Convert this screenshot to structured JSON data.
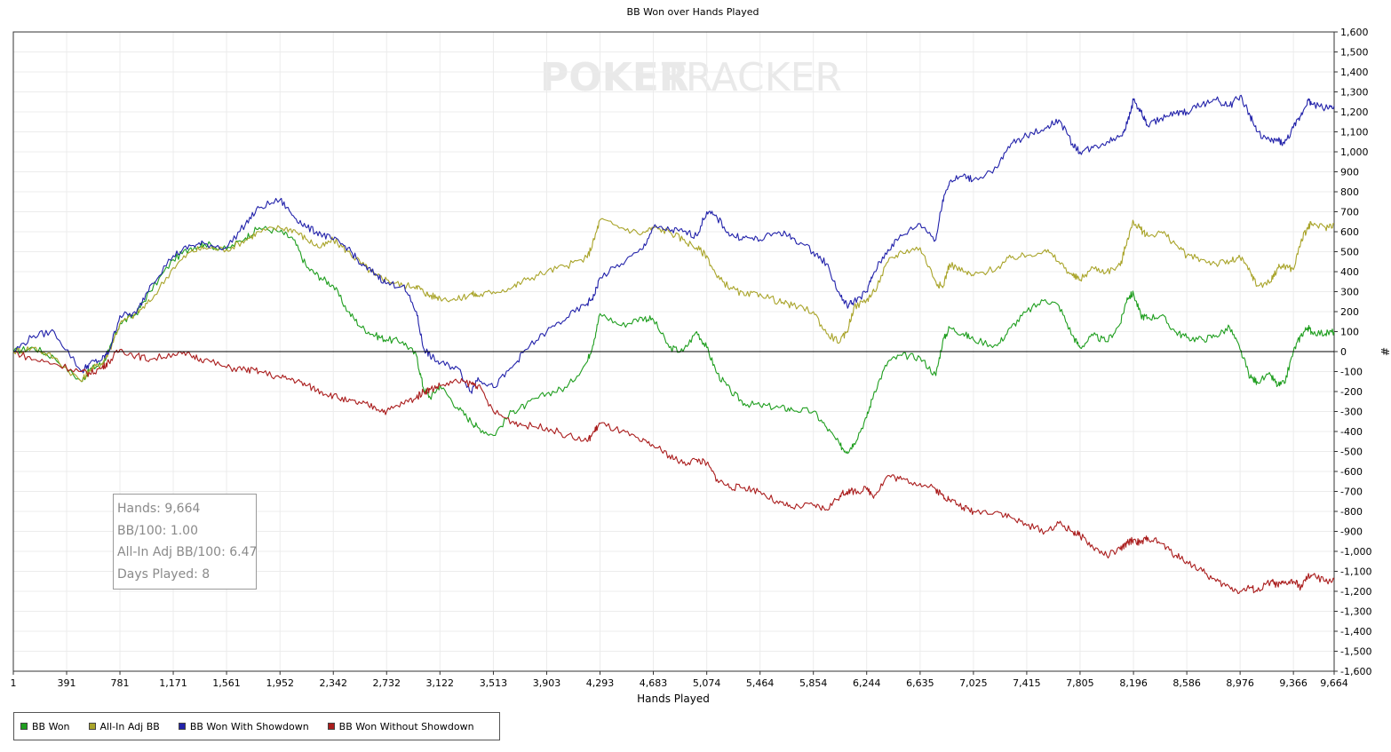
{
  "chart_data": {
    "type": "line",
    "title": "BB Won over Hands Played",
    "xlabel": "Hands Played",
    "ylabel": "#",
    "watermark": {
      "part1": "POKER",
      "part2": "TRACKER"
    },
    "x_range": [
      1,
      9664
    ],
    "ylim": [
      -1600,
      1600
    ],
    "y_ticks": [
      1600,
      1500,
      1400,
      1300,
      1200,
      1100,
      1000,
      900,
      800,
      700,
      600,
      500,
      400,
      300,
      200,
      100,
      0,
      -100,
      -200,
      -300,
      -400,
      -500,
      -600,
      -700,
      -800,
      -900,
      -1000,
      -1100,
      -1200,
      -1300,
      -1400,
      -1500,
      -1600
    ],
    "y_tick_labels": [
      "1,600",
      "1,500",
      "1,400",
      "1,300",
      "1,200",
      "1,100",
      "1,000",
      "900",
      "800",
      "700",
      "600",
      "500",
      "400",
      "300",
      "200",
      "100",
      "0",
      "-100",
      "-200",
      "-300",
      "-400",
      "-500",
      "-600",
      "-700",
      "-800",
      "-900",
      "-1,000",
      "-1,100",
      "-1,200",
      "-1,300",
      "-1,400",
      "-1,500",
      "-1,600"
    ],
    "x_ticks": [
      1,
      391,
      781,
      1171,
      1561,
      1952,
      2342,
      2732,
      3122,
      3513,
      3903,
      4293,
      4683,
      5074,
      5464,
      5854,
      6244,
      6635,
      7025,
      7415,
      7805,
      8196,
      8586,
      8976,
      9366,
      9664
    ],
    "x_tick_labels": [
      "1",
      "391",
      "781",
      "1,171",
      "1,561",
      "1,952",
      "2,342",
      "2,732",
      "3,122",
      "3,513",
      "3,903",
      "4,293",
      "4,683",
      "5,074",
      "5,464",
      "5,854",
      "6,244",
      "6,635",
      "7,025",
      "7,415",
      "7,805",
      "8,196",
      "8,586",
      "8,976",
      "9,366",
      "9,664"
    ],
    "grid": true,
    "legend_position": "bottom-left",
    "series": [
      {
        "name": "BB Won",
        "color": "#1f9e1f",
        "x": [
          1,
          150,
          300,
          500,
          560,
          650,
          700,
          781,
          900,
          1000,
          1171,
          1300,
          1400,
          1561,
          1700,
          1800,
          1952,
          2050,
          2150,
          2250,
          2342,
          2450,
          2550,
          2650,
          2732,
          2850,
          2950,
          3000,
          3050,
          3122,
          3250,
          3350,
          3400,
          3513,
          3650,
          3750,
          3903,
          4050,
          4200,
          4250,
          4293,
          4450,
          4600,
          4683,
          4800,
          4900,
          5000,
          5074,
          5150,
          5250,
          5350,
          5464,
          5600,
          5700,
          5854,
          5950,
          6050,
          6100,
          6150,
          6244,
          6300,
          6400,
          6500,
          6635,
          6750,
          6800,
          6850,
          6950,
          7025,
          7200,
          7300,
          7415,
          7550,
          7650,
          7750,
          7805,
          7900,
          8000,
          8100,
          8150,
          8196,
          8250,
          8300,
          8400,
          8500,
          8586,
          8700,
          8800,
          8900,
          8976,
          9050,
          9100,
          9200,
          9250,
          9300,
          9366,
          9420,
          9470,
          9500,
          9600,
          9664
        ],
        "y": [
          0,
          20,
          -30,
          -150,
          -90,
          -60,
          0,
          140,
          190,
          300,
          460,
          520,
          540,
          510,
          570,
          620,
          600,
          560,
          420,
          370,
          330,
          200,
          120,
          80,
          60,
          50,
          -20,
          -180,
          -230,
          -170,
          -280,
          -350,
          -380,
          -420,
          -300,
          -270,
          -210,
          -180,
          -50,
          60,
          190,
          130,
          170,
          160,
          20,
          0,
          100,
          20,
          -110,
          -200,
          -260,
          -270,
          -280,
          -290,
          -300,
          -380,
          -470,
          -500,
          -460,
          -330,
          -200,
          -50,
          -20,
          -30,
          -120,
          50,
          120,
          90,
          60,
          30,
          120,
          200,
          260,
          230,
          80,
          20,
          80,
          50,
          140,
          270,
          290,
          180,
          170,
          180,
          100,
          70,
          60,
          80,
          120,
          10,
          -130,
          -150,
          -120,
          -170,
          -160,
          0,
          80,
          120,
          100,
          90,
          100
        ]
      },
      {
        "name": "All-In Adj BB",
        "color": "#a9a42a",
        "x": [
          1,
          150,
          300,
          500,
          560,
          650,
          700,
          781,
          900,
          1000,
          1171,
          1300,
          1400,
          1561,
          1700,
          1800,
          1952,
          2050,
          2150,
          2250,
          2342,
          2450,
          2550,
          2650,
          2732,
          2850,
          2950,
          3000,
          3050,
          3122,
          3250,
          3350,
          3400,
          3513,
          3650,
          3750,
          3903,
          4050,
          4200,
          4250,
          4293,
          4450,
          4600,
          4683,
          4800,
          4900,
          5000,
          5074,
          5150,
          5250,
          5350,
          5464,
          5600,
          5700,
          5854,
          5950,
          6050,
          6100,
          6150,
          6244,
          6300,
          6400,
          6500,
          6635,
          6750,
          6800,
          6850,
          6950,
          7025,
          7200,
          7300,
          7415,
          7550,
          7650,
          7750,
          7805,
          7900,
          8000,
          8100,
          8150,
          8196,
          8250,
          8300,
          8400,
          8500,
          8586,
          8700,
          8800,
          8900,
          8976,
          9050,
          9100,
          9200,
          9250,
          9300,
          9366,
          9420,
          9470,
          9500,
          9600,
          9664
        ],
        "y": [
          0,
          20,
          -30,
          -150,
          -90,
          -60,
          0,
          140,
          190,
          250,
          420,
          500,
          520,
          510,
          560,
          600,
          620,
          610,
          560,
          520,
          560,
          500,
          440,
          380,
          360,
          330,
          330,
          300,
          280,
          270,
          260,
          290,
          280,
          300,
          320,
          360,
          400,
          430,
          470,
          560,
          660,
          620,
          590,
          620,
          600,
          560,
          520,
          480,
          370,
          320,
          280,
          290,
          250,
          230,
          200,
          90,
          50,
          100,
          220,
          260,
          300,
          450,
          500,
          520,
          350,
          320,
          440,
          400,
          380,
          420,
          470,
          480,
          510,
          450,
          380,
          360,
          420,
          400,
          430,
          560,
          650,
          610,
          580,
          600,
          540,
          480,
          460,
          440,
          450,
          470,
          400,
          330,
          350,
          420,
          430,
          410,
          550,
          620,
          640,
          620,
          640
        ]
      },
      {
        "name": "BB Won With Showdown",
        "color": "#2222aa",
        "x": [
          1,
          150,
          300,
          500,
          560,
          650,
          700,
          781,
          900,
          1000,
          1171,
          1300,
          1400,
          1561,
          1700,
          1800,
          1952,
          2050,
          2150,
          2250,
          2342,
          2450,
          2550,
          2650,
          2732,
          2850,
          2950,
          3000,
          3050,
          3122,
          3250,
          3350,
          3400,
          3513,
          3650,
          3750,
          3903,
          4050,
          4200,
          4250,
          4293,
          4450,
          4600,
          4683,
          4800,
          4900,
          5000,
          5074,
          5150,
          5250,
          5350,
          5464,
          5600,
          5700,
          5854,
          5950,
          6050,
          6100,
          6150,
          6244,
          6300,
          6400,
          6500,
          6635,
          6750,
          6800,
          6850,
          6950,
          7025,
          7200,
          7300,
          7415,
          7550,
          7650,
          7750,
          7805,
          7900,
          8000,
          8100,
          8150,
          8196,
          8250,
          8300,
          8400,
          8500,
          8586,
          8700,
          8800,
          8900,
          8976,
          9050,
          9100,
          9200,
          9250,
          9300,
          9366,
          9420,
          9470,
          9500,
          9600,
          9664
        ],
        "y": [
          0,
          80,
          100,
          -100,
          -60,
          -40,
          0,
          180,
          190,
          330,
          480,
          530,
          540,
          520,
          640,
          720,
          760,
          680,
          620,
          590,
          560,
          520,
          430,
          390,
          340,
          330,
          200,
          20,
          -20,
          -60,
          -80,
          -200,
          -130,
          -180,
          -80,
          10,
          100,
          170,
          240,
          280,
          370,
          440,
          510,
          620,
          610,
          600,
          580,
          700,
          670,
          580,
          570,
          560,
          600,
          570,
          500,
          440,
          280,
          230,
          250,
          300,
          400,
          510,
          580,
          640,
          560,
          760,
          850,
          880,
          860,
          920,
          1040,
          1080,
          1120,
          1160,
          1040,
          1000,
          1020,
          1050,
          1080,
          1140,
          1260,
          1200,
          1130,
          1170,
          1190,
          1200,
          1240,
          1260,
          1230,
          1280,
          1180,
          1100,
          1050,
          1060,
          1040,
          1120,
          1180,
          1260,
          1240,
          1220,
          1230
        ]
      },
      {
        "name": "BB Won Without Showdown",
        "color": "#aa1d1d",
        "x": [
          1,
          150,
          300,
          500,
          560,
          650,
          700,
          781,
          900,
          1000,
          1171,
          1300,
          1400,
          1561,
          1700,
          1800,
          1952,
          2050,
          2150,
          2250,
          2342,
          2450,
          2550,
          2650,
          2732,
          2850,
          2950,
          3000,
          3050,
          3122,
          3250,
          3350,
          3400,
          3513,
          3650,
          3750,
          3903,
          4050,
          4200,
          4250,
          4293,
          4450,
          4600,
          4683,
          4800,
          4900,
          5000,
          5074,
          5150,
          5250,
          5350,
          5464,
          5600,
          5700,
          5854,
          5950,
          6050,
          6100,
          6150,
          6244,
          6300,
          6400,
          6500,
          6635,
          6750,
          6800,
          6850,
          6950,
          7025,
          7200,
          7300,
          7415,
          7550,
          7650,
          7750,
          7805,
          7900,
          8000,
          8100,
          8150,
          8196,
          8250,
          8300,
          8400,
          8500,
          8586,
          8700,
          8800,
          8900,
          8976,
          9050,
          9100,
          9200,
          9250,
          9300,
          9366,
          9420,
          9470,
          9500,
          9600,
          9664
        ],
        "y": [
          0,
          -40,
          -60,
          -100,
          -110,
          -80,
          -50,
          10,
          -20,
          -40,
          -10,
          -20,
          -40,
          -80,
          -90,
          -100,
          -130,
          -140,
          -170,
          -200,
          -220,
          -250,
          -260,
          -280,
          -300,
          -260,
          -230,
          -200,
          -190,
          -170,
          -150,
          -160,
          -170,
          -300,
          -350,
          -370,
          -380,
          -420,
          -450,
          -400,
          -360,
          -400,
          -450,
          -470,
          -520,
          -560,
          -540,
          -560,
          -640,
          -680,
          -680,
          -700,
          -760,
          -780,
          -770,
          -790,
          -720,
          -700,
          -700,
          -690,
          -720,
          -620,
          -640,
          -660,
          -690,
          -720,
          -740,
          -780,
          -800,
          -800,
          -830,
          -870,
          -900,
          -860,
          -900,
          -920,
          -980,
          -1020,
          -990,
          -960,
          -940,
          -960,
          -930,
          -960,
          -1020,
          -1050,
          -1100,
          -1150,
          -1180,
          -1200,
          -1180,
          -1200,
          -1150,
          -1170,
          -1160,
          -1150,
          -1180,
          -1130,
          -1120,
          -1150,
          -1140
        ]
      }
    ]
  },
  "stats": {
    "hands": "Hands: 9,664",
    "bb100": "BB/100: 1.00",
    "allin": "All-In Adj BB/100: 6.47",
    "days": "Days Played: 8"
  }
}
